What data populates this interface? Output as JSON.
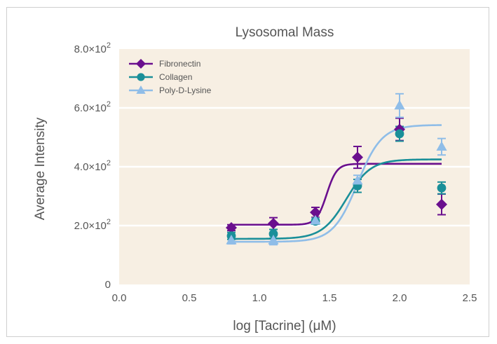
{
  "chart_data": {
    "type": "scatter",
    "title": "Lysosomal Mass",
    "xlabel": "log [Tacrine] (μM)",
    "ylabel": "Average Intensity",
    "xlim": [
      0.0,
      2.5
    ],
    "ylim": [
      0,
      800
    ],
    "x_ticks": [
      {
        "value": 0.0,
        "label": "0.0"
      },
      {
        "value": 0.5,
        "label": "0.5"
      },
      {
        "value": 1.0,
        "label": "1.0"
      },
      {
        "value": 1.5,
        "label": "1.5"
      },
      {
        "value": 2.0,
        "label": "2.0"
      },
      {
        "value": 2.5,
        "label": "2.5"
      }
    ],
    "y_ticks": [
      {
        "value": 0,
        "label": "0",
        "mantissa": "",
        "exponent": ""
      },
      {
        "value": 200,
        "label": "",
        "mantissa": "2.0×10",
        "exponent": "2"
      },
      {
        "value": 400,
        "label": "",
        "mantissa": "4.0×10",
        "exponent": "2"
      },
      {
        "value": 600,
        "label": "",
        "mantissa": "6.0×10",
        "exponent": "2"
      },
      {
        "value": 800,
        "label": "",
        "mantissa": "8.0×10",
        "exponent": "2"
      }
    ],
    "grid": "horizontal",
    "legend_position": "top-left",
    "background_color": "#f7efe3",
    "series": [
      {
        "name": "Fibronectin",
        "color": "#6a0f8e",
        "marker": "diamond",
        "x": [
          0.8,
          1.1,
          1.4,
          1.7,
          2.0,
          2.3
        ],
        "y": [
          193,
          207,
          245,
          432,
          527,
          272
        ],
        "error": [
          10,
          20,
          17,
          37,
          38,
          35
        ],
        "fit": {
          "bottom": 203,
          "top": 410,
          "logEC50": 1.48,
          "hill": 12
        }
      },
      {
        "name": "Collagen",
        "color": "#1a8f99",
        "marker": "circle",
        "x": [
          0.8,
          1.1,
          1.4,
          1.7,
          2.0,
          2.3
        ],
        "y": [
          165,
          172,
          215,
          335,
          512,
          328
        ],
        "error": [
          12,
          15,
          10,
          22,
          25,
          20
        ],
        "fit": {
          "bottom": 155,
          "top": 425,
          "logEC50": 1.62,
          "hill": 5
        }
      },
      {
        "name": "Poly-D-Lysine",
        "color": "#8fbde8",
        "marker": "triangle",
        "x": [
          0.8,
          1.1,
          1.4,
          1.7,
          2.0,
          2.3
        ],
        "y": [
          150,
          150,
          217,
          353,
          608,
          468
        ],
        "error": [
          12,
          15,
          8,
          18,
          40,
          28
        ],
        "fit": {
          "bottom": 145,
          "top": 542,
          "logEC50": 1.7,
          "hill": 5
        }
      }
    ]
  }
}
